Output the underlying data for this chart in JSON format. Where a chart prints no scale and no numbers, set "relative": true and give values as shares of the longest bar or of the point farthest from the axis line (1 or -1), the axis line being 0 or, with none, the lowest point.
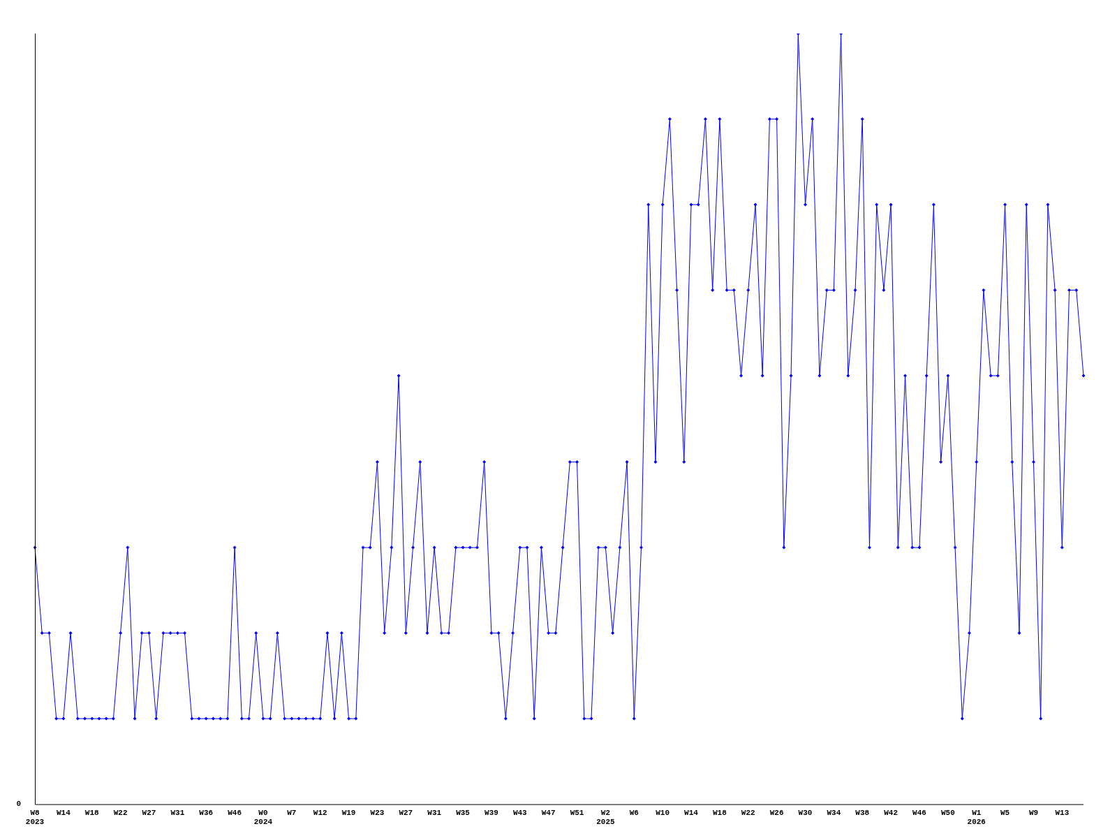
{
  "chart_data": {
    "type": "line",
    "relative": true,
    "color": "#0000ff",
    "marker": "diamond",
    "grid": false,
    "legend": false,
    "annotations": [
      "0"
    ],
    "categories": [
      "W8\n2023",
      null,
      null,
      null,
      "W14",
      null,
      null,
      null,
      "W18",
      null,
      null,
      null,
      "W22",
      null,
      null,
      null,
      "W27",
      null,
      null,
      null,
      "W31",
      null,
      null,
      null,
      "W36",
      null,
      null,
      null,
      "W46",
      null,
      null,
      null,
      "W0\n2024",
      null,
      null,
      null,
      "W7",
      null,
      null,
      null,
      "W12",
      null,
      null,
      null,
      "W19",
      null,
      null,
      null,
      "W23",
      null,
      null,
      null,
      "W27",
      null,
      null,
      null,
      "W31",
      null,
      null,
      null,
      "W35",
      null,
      null,
      null,
      "W39",
      null,
      null,
      null,
      "W43",
      null,
      null,
      null,
      "W47",
      null,
      null,
      null,
      "W51",
      null,
      null,
      null,
      "W2\n2025",
      null,
      null,
      null,
      "W6",
      null,
      null,
      null,
      "W10",
      null,
      null,
      null,
      "W14",
      null,
      null,
      null,
      "W18",
      null,
      null,
      null,
      "W22",
      null,
      null,
      null,
      "W26",
      null,
      null,
      null,
      "W30",
      null,
      null,
      null,
      "W34",
      null,
      null,
      null,
      "W38",
      null,
      null,
      null,
      "W42",
      null,
      null,
      null,
      "W46",
      null,
      null,
      null,
      "W50",
      null,
      null,
      null,
      "W1\n2026",
      null,
      null,
      null,
      "W5",
      null,
      null,
      null,
      "W9",
      null,
      null,
      null,
      "W13",
      null,
      null,
      null
    ],
    "values": [
      0.333,
      0.222,
      0.222,
      0.111,
      0.111,
      0.222,
      0.111,
      0.111,
      0.111,
      0.111,
      0.111,
      0.111,
      0.222,
      0.333,
      0.111,
      0.222,
      0.222,
      0.111,
      0.222,
      0.222,
      0.222,
      0.222,
      0.111,
      0.111,
      0.111,
      0.111,
      0.111,
      0.111,
      0.333,
      0.111,
      0.111,
      0.222,
      0.111,
      0.111,
      0.222,
      0.111,
      0.111,
      0.111,
      0.111,
      0.111,
      0.111,
      0.222,
      0.111,
      0.222,
      0.111,
      0.111,
      0.333,
      0.333,
      0.444,
      0.222,
      0.333,
      0.556,
      0.222,
      0.333,
      0.444,
      0.222,
      0.333,
      0.222,
      0.222,
      0.333,
      0.333,
      0.333,
      0.333,
      0.444,
      0.222,
      0.222,
      0.111,
      0.222,
      0.333,
      0.333,
      0.111,
      0.333,
      0.222,
      0.222,
      0.333,
      0.444,
      0.444,
      0.111,
      0.111,
      0.333,
      0.333,
      0.222,
      0.333,
      0.444,
      0.111,
      0.333,
      0.778,
      0.444,
      0.778,
      0.889,
      0.667,
      0.444,
      0.778,
      0.778,
      0.889,
      0.667,
      0.889,
      0.667,
      0.667,
      0.556,
      0.667,
      0.778,
      0.556,
      0.889,
      0.889,
      0.333,
      0.556,
      1,
      0.778,
      0.889,
      0.556,
      0.667,
      0.667,
      1,
      0.556,
      0.667,
      0.889,
      0.333,
      0.778,
      0.667,
      0.778,
      0.333,
      0.556,
      0.333,
      0.333,
      0.556,
      0.778,
      0.444,
      0.556,
      0.333,
      0.111,
      0.222,
      0.444,
      0.667,
      0.556,
      0.556,
      0.778,
      0.444,
      0.222,
      0.778,
      0.444,
      0.111,
      0.778,
      0.667,
      0.333,
      0.667,
      0.667,
      0.556
    ]
  }
}
